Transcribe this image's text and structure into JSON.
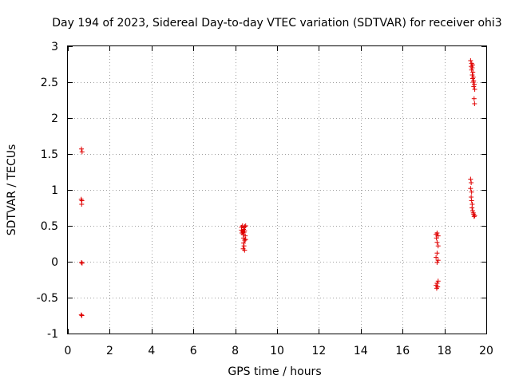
{
  "chart_data": {
    "type": "scatter",
    "title": "Day 194 of 2023, Sidereal Day-to-day VTEC variation (SDTVAR) for receiver ohi3",
    "xlabel": "GPS time / hours",
    "ylabel": "SDTVAR / TECUs",
    "xlim": [
      0,
      20
    ],
    "ylim": [
      -1,
      3
    ],
    "xticks": [
      0,
      2,
      4,
      6,
      8,
      10,
      12,
      14,
      16,
      18,
      20
    ],
    "yticks": [
      -1,
      -0.5,
      0,
      0.5,
      1,
      1.5,
      2,
      2.5,
      3
    ],
    "xtick_labels": [
      "0",
      "2",
      "4",
      "6",
      "8",
      "10",
      "12",
      "14",
      "16",
      "18",
      "20"
    ],
    "ytick_labels": [
      "-1",
      "-0.5",
      "0",
      "0.5",
      "1",
      "1.5",
      "2",
      "2.5",
      "3"
    ],
    "grid": true,
    "marker": "+",
    "color": "#e00000",
    "series": [
      {
        "name": "SDTVAR",
        "points": [
          [
            0.65,
            1.57
          ],
          [
            0.68,
            1.53
          ],
          [
            0.64,
            0.87
          ],
          [
            0.67,
            0.85
          ],
          [
            0.66,
            0.8
          ],
          [
            0.65,
            -0.01
          ],
          [
            0.68,
            -0.02
          ],
          [
            0.64,
            -0.74
          ],
          [
            0.67,
            -0.75
          ],
          [
            8.3,
            0.48
          ],
          [
            8.35,
            0.5
          ],
          [
            8.4,
            0.47
          ],
          [
            8.45,
            0.49
          ],
          [
            8.5,
            0.5
          ],
          [
            8.3,
            0.44
          ],
          [
            8.35,
            0.42
          ],
          [
            8.4,
            0.45
          ],
          [
            8.45,
            0.43
          ],
          [
            8.32,
            0.4
          ],
          [
            8.38,
            0.38
          ],
          [
            8.42,
            0.41
          ],
          [
            8.48,
            0.36
          ],
          [
            8.4,
            0.33
          ],
          [
            8.45,
            0.3
          ],
          [
            8.5,
            0.31
          ],
          [
            8.4,
            0.26
          ],
          [
            8.42,
            0.22
          ],
          [
            8.38,
            0.18
          ],
          [
            8.45,
            0.16
          ],
          [
            17.6,
            0.38
          ],
          [
            17.65,
            0.4
          ],
          [
            17.7,
            0.36
          ],
          [
            17.62,
            0.33
          ],
          [
            17.65,
            0.27
          ],
          [
            17.7,
            0.22
          ],
          [
            17.65,
            0.12
          ],
          [
            17.6,
            0.06
          ],
          [
            17.7,
            0.02
          ],
          [
            17.65,
            -0.01
          ],
          [
            17.7,
            -0.27
          ],
          [
            17.65,
            -0.3
          ],
          [
            17.6,
            -0.33
          ],
          [
            17.68,
            -0.35
          ],
          [
            17.63,
            -0.37
          ],
          [
            19.25,
            2.8
          ],
          [
            19.3,
            2.76
          ],
          [
            19.35,
            2.74
          ],
          [
            19.28,
            2.72
          ],
          [
            19.33,
            2.7
          ],
          [
            19.3,
            2.67
          ],
          [
            19.36,
            2.64
          ],
          [
            19.33,
            2.6
          ],
          [
            19.38,
            2.57
          ],
          [
            19.35,
            2.55
          ],
          [
            19.4,
            2.52
          ],
          [
            19.38,
            2.5
          ],
          [
            19.43,
            2.47
          ],
          [
            19.4,
            2.44
          ],
          [
            19.45,
            2.4
          ],
          [
            19.42,
            2.27
          ],
          [
            19.44,
            2.2
          ],
          [
            19.25,
            1.15
          ],
          [
            19.28,
            1.1
          ],
          [
            19.25,
            1.02
          ],
          [
            19.3,
            0.97
          ],
          [
            19.28,
            0.9
          ],
          [
            19.3,
            0.85
          ],
          [
            19.33,
            0.8
          ],
          [
            19.32,
            0.75
          ],
          [
            19.35,
            0.71
          ],
          [
            19.38,
            0.68
          ],
          [
            19.4,
            0.66
          ],
          [
            19.45,
            0.64
          ],
          [
            19.42,
            0.63
          ]
        ]
      }
    ]
  }
}
